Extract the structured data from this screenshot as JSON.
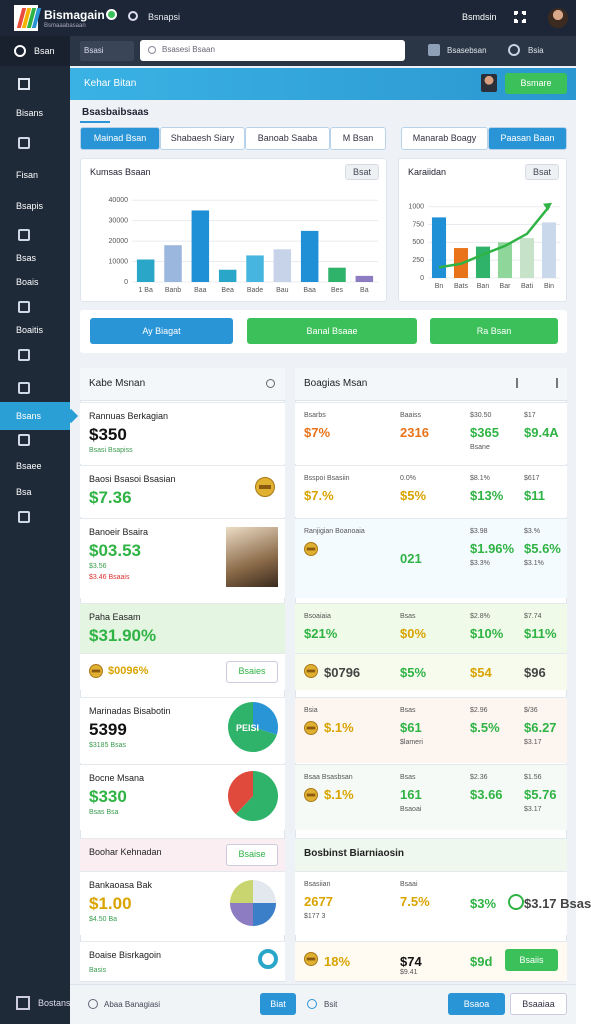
{
  "topbar": {
    "logo_title": "Bismagain",
    "logo_subtitle": "Bsmaaabasaan",
    "brand": "Bsnapsi",
    "user": "Bsmdsin"
  },
  "sidebar": {
    "items": [
      "Bisans",
      "Fisan",
      "Bsapis",
      "Bsas",
      "Boais",
      "Boaitis",
      "Bsans",
      "Bsaee",
      "Bsa"
    ],
    "active": 6,
    "top": "Bsan",
    "footer": "Bostans"
  },
  "searchbar": {
    "breadcrumb": "Bsasi",
    "placeholder": "Bsasesi Bsaan",
    "action1": "Bsasebsan",
    "action2": "Bsia"
  },
  "header": {
    "title": "Kehar Bitan",
    "button": "Bsmare"
  },
  "section_label": "Bsasbaibsaas",
  "tabs": {
    "left": [
      "Mainad Bsan",
      "Shabaesh Siary",
      "Banoab Saaba",
      "M Bsan"
    ],
    "left_active": 0,
    "right": [
      "Manarab Boagy",
      "Paasan Baan"
    ],
    "right_active": 1
  },
  "chart_left": {
    "type": "bar",
    "title": "Kumsas Bsaan",
    "button": "Bsat",
    "categories": [
      "1 Ba",
      "Banb",
      "Baa",
      "Bea",
      "Bade",
      "Bau",
      "Baa",
      "Bes",
      "Ba"
    ],
    "values": [
      11000,
      18000,
      35000,
      6000,
      13000,
      16000,
      25000,
      7000,
      3000
    ],
    "colors": [
      "#2aa6c9",
      "#9bb7de",
      "#1f8fd6",
      "#2aa6c9",
      "#46b6e0",
      "#c6d3e8",
      "#1f8fd6",
      "#2fb36a",
      "#8e7cc3"
    ],
    "ylim": [
      0,
      45000
    ],
    "yticks": [
      0,
      10000,
      20000,
      30000,
      40000
    ],
    "grid": true
  },
  "chart_right": {
    "type": "combo",
    "title": "Karaiidan",
    "button": "Bsat",
    "categories": [
      "Bn",
      "Bats",
      "Ban",
      "Bar",
      "Bati",
      "Bin"
    ],
    "values": [
      850,
      420,
      440,
      500,
      560,
      780
    ],
    "colors": [
      "#1f8fd6",
      "#e8731a",
      "#2fb36a",
      "#8fd69a",
      "#c6e3c9",
      "#c9d8ea"
    ],
    "line": [
      150,
      200,
      330,
      450,
      620,
      1000
    ],
    "line_color": "#2fb344",
    "ylim": [
      0,
      1150
    ],
    "yticks": [
      0,
      250,
      500,
      750,
      1000
    ],
    "grid": true
  },
  "actions": [
    {
      "label": "Ay Biagat",
      "color": "#2a95d6"
    },
    {
      "label": "Banal Bsaae",
      "color": "#3cc05a"
    },
    {
      "label": "Ra Bsan",
      "color": "#3cc05a"
    }
  ],
  "left_panel": {
    "header": "Kabe Msnan",
    "items": [
      {
        "title": "Rannuas Berkagian",
        "value": "$350",
        "sub": "Bsasi Bsapiss",
        "color": "#111111"
      },
      {
        "title": "Baosi Bsasoi Bsasian",
        "value": "$7.36",
        "color": "#2fb344",
        "icon": "coin"
      },
      {
        "title": "Banoeir Bsaira",
        "value": "$03.53",
        "sub": "$3.56",
        "sub2": "$3.46 Bsaais",
        "color": "#2fb344",
        "icon": "image"
      },
      {
        "title": "Paha Easam",
        "value": "$31.90%",
        "color": "#2fb344",
        "tint": "#e4f5e2"
      },
      {
        "value": "$0096%",
        "color": "#d9a400",
        "icon": "coin-left",
        "button": "Bsaies"
      },
      {
        "title": "Marinadas Bisabotin",
        "value": "5399",
        "sub": "$3185 Bsas",
        "color": "#111111",
        "icon": "pie-blue",
        "pie_label": "PEISI"
      },
      {
        "title": "Bocne Msana",
        "value": "$330",
        "sub": "Bsas Bsa",
        "color": "#2fb344",
        "icon": "pie-red"
      },
      {
        "title": "Boohar Kehnadan",
        "button": "Bsaise",
        "tint": "#fbeef3"
      },
      {
        "title": "Bankaoasa Bak",
        "value": "$1.00",
        "sub": "$4.50 Ba",
        "color": "#d9a400",
        "icon": "pie-gray"
      },
      {
        "title": "Boaise Bisrkagoin",
        "sub": "Basis",
        "icon": "ring"
      }
    ]
  },
  "right_panel": {
    "header": "Boagias Msan",
    "rows": [
      [
        {
          "top": "Bsarbs",
          "value": "$7%",
          "color": "#e8731a"
        },
        {
          "top": "Baaiss",
          "value": "2316",
          "color": "#e8731a"
        },
        {
          "top": "$30.50",
          "value": "$365",
          "bottom": "Bsane",
          "color": "#2fb344"
        },
        {
          "top": "$17",
          "value": "$9.4A",
          "color": "#2fb344"
        }
      ],
      [
        {
          "top": "Bsspoi Bsasiin",
          "value": "$7.%",
          "color": "#d9a400"
        },
        {
          "top": "0.0%",
          "value": "$5%",
          "color": "#d9a400"
        },
        {
          "top": "$8.1%",
          "value": "$13%",
          "color": "#2fb344"
        },
        {
          "top": "$617",
          "value": "$11",
          "color": "#2fb344"
        }
      ],
      [
        {
          "top": "Ranjigian Boanoaia",
          "icon": "coin"
        },
        {
          "value": "021",
          "color": "#2fb344"
        },
        {
          "top": "$3.98",
          "value": "$1.96%",
          "bottom": "$3.3%",
          "color": "#2fb344"
        },
        {
          "top": "$3.%",
          "value": "$5.6%",
          "bottom": "$3.1%",
          "color": "#2fb344"
        }
      ],
      [
        {
          "top": "Bsoaiaia",
          "value": "$21%",
          "color": "#2fb344"
        },
        {
          "top": "Bsas",
          "value": "$0%",
          "color": "#d9a400"
        },
        {
          "top": "$2.8%",
          "value": "$10%",
          "color": "#2fb344"
        },
        {
          "top": "$7.74",
          "value": "$11%",
          "color": "#2fb344"
        }
      ],
      [
        {
          "value": "$0796",
          "color": "#444444",
          "icon": "coin"
        },
        {
          "value": "$5%",
          "color": "#2fb344"
        },
        {
          "value": "$54",
          "color": "#d9a400"
        },
        {
          "value": "$96",
          "color": "#444444"
        }
      ],
      [
        {
          "top": "Bsia",
          "value": "$.1%",
          "color": "#d9a400",
          "icon": "coin"
        },
        {
          "top": "Bsas",
          "value": "$61",
          "bottom": "$lameri",
          "color": "#2fb344"
        },
        {
          "top": "$2.96",
          "value": "$.5%",
          "color": "#2fb344"
        },
        {
          "top": "$/36",
          "value": "$6.27",
          "bottom": "$3.17",
          "color": "#2fb344"
        }
      ],
      [
        {
          "top": "Bsaa Bsasbsan",
          "value": "$.1%",
          "color": "#d9a400",
          "icon": "coin"
        },
        {
          "top": "Bsas",
          "value": "161",
          "bottom": "Bsaoai",
          "color": "#2fb344"
        },
        {
          "top": "$2.36",
          "value": "$3.66",
          "color": "#2fb344"
        },
        {
          "top": "$1.56",
          "value": "$5.76",
          "bottom": "$3.17",
          "color": "#2fb344"
        }
      ],
      [
        {
          "value": "Bosbinst Biarniaosin",
          "color": "#222222"
        }
      ],
      [
        {
          "top": "Bsasiian",
          "value": "2677",
          "bottom": "$177 3",
          "color": "#d9a400"
        },
        {
          "top": "Bsaai",
          "value": "7.5%",
          "color": "#d9a400"
        },
        {
          "value": "$3%",
          "color": "#2fb344",
          "icon": "ring"
        },
        {
          "value": "$3.17 Bsas",
          "color": "#444444"
        }
      ],
      [
        {
          "value": "18%",
          "color": "#d9a400",
          "icon": "coin"
        },
        {
          "value": "$74",
          "bottom": "$9.41",
          "color": "#111111"
        },
        {
          "value": "$9d",
          "color": "#2fb344"
        },
        {
          "button": "Bsaiis"
        }
      ]
    ]
  },
  "bottom": {
    "left": "Abaa Banagiasi",
    "btn1": "Biat",
    "mid": "Bsit",
    "btn2": "Bsaoa",
    "btn3": "Bsaaiaa"
  }
}
